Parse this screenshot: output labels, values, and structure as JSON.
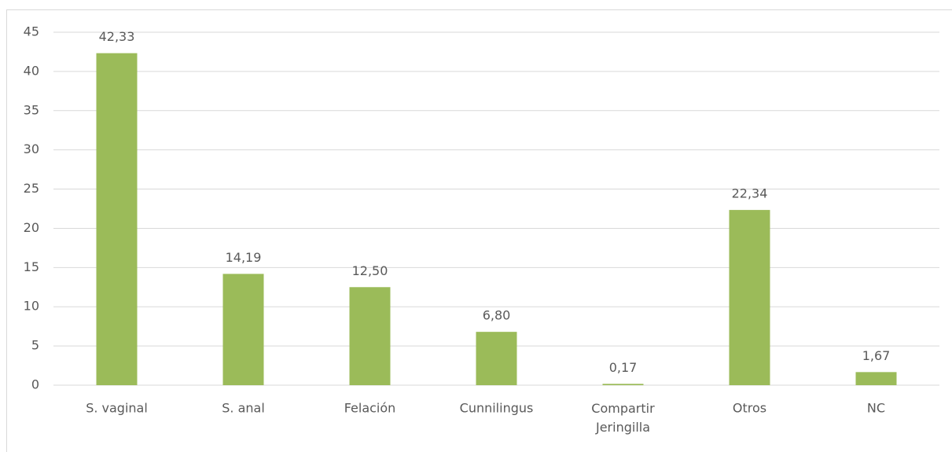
{
  "chart_data": {
    "type": "bar",
    "categories": [
      "S. vaginal",
      "S. anal",
      "Felación",
      "Cunnilingus",
      "Compartir Jeringilla",
      "Otros",
      "NC"
    ],
    "values": [
      42.33,
      14.19,
      12.5,
      6.8,
      0.17,
      22.34,
      1.67
    ],
    "value_labels": [
      "42,33",
      "14,19",
      "12,50",
      "6,80",
      "0,17",
      "22,34",
      "1,67"
    ],
    "color": "#9bbb59",
    "ylim": [
      0,
      45
    ],
    "yticks": [
      0,
      5,
      10,
      15,
      20,
      25,
      30,
      35,
      40,
      45
    ],
    "grid": true
  }
}
